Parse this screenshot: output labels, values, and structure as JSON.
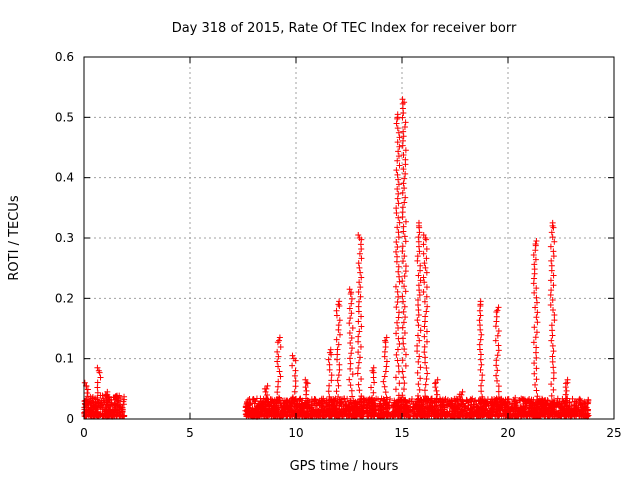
{
  "chart_data": {
    "type": "scatter",
    "title": "Day 318 of 2015, Rate Of TEC Index for receiver borr",
    "xlabel": "GPS time / hours",
    "ylabel": "ROTI / TECUs",
    "xlim": [
      0,
      25
    ],
    "ylim": [
      0,
      0.6
    ],
    "x_ticks": [
      0,
      5,
      10,
      15,
      20,
      25
    ],
    "x_tick_labels": [
      "0",
      "5",
      "10",
      "15",
      "20",
      "25"
    ],
    "y_ticks": [
      0,
      0.1,
      0.2,
      0.3,
      0.4,
      0.5,
      0.6
    ],
    "y_tick_labels": [
      "0",
      "0.1",
      "0.2",
      "0.3",
      "0.4",
      "0.5",
      "0.6"
    ],
    "grid": true,
    "marker": "+",
    "colors": {
      "points": "#ff0000",
      "axis": "#000000",
      "grid": "#a0a0a0"
    },
    "series": [
      {
        "name": "ROTI",
        "background_segments": [
          {
            "x_start": 0.0,
            "x_end": 1.9,
            "y_max": 0.035
          },
          {
            "x_start": 7.6,
            "x_end": 23.8,
            "y_max": 0.03
          }
        ],
        "peaks": [
          {
            "x": 0.1,
            "y": 0.055
          },
          {
            "x": 0.7,
            "y": 0.08
          },
          {
            "x": 1.1,
            "y": 0.04
          },
          {
            "x": 8.6,
            "y": 0.05
          },
          {
            "x": 9.2,
            "y": 0.13
          },
          {
            "x": 9.9,
            "y": 0.1
          },
          {
            "x": 10.5,
            "y": 0.06
          },
          {
            "x": 11.6,
            "y": 0.11
          },
          {
            "x": 12.0,
            "y": 0.19
          },
          {
            "x": 12.6,
            "y": 0.21
          },
          {
            "x": 13.0,
            "y": 0.3
          },
          {
            "x": 13.6,
            "y": 0.08
          },
          {
            "x": 14.2,
            "y": 0.13
          },
          {
            "x": 14.8,
            "y": 0.5
          },
          {
            "x": 15.1,
            "y": 0.525
          },
          {
            "x": 15.8,
            "y": 0.32
          },
          {
            "x": 16.1,
            "y": 0.3
          },
          {
            "x": 16.6,
            "y": 0.06
          },
          {
            "x": 17.8,
            "y": 0.04
          },
          {
            "x": 18.7,
            "y": 0.19
          },
          {
            "x": 19.5,
            "y": 0.18
          },
          {
            "x": 20.3,
            "y": 0.03
          },
          {
            "x": 21.3,
            "y": 0.29
          },
          {
            "x": 22.1,
            "y": 0.32
          },
          {
            "x": 22.8,
            "y": 0.06
          }
        ]
      }
    ]
  }
}
